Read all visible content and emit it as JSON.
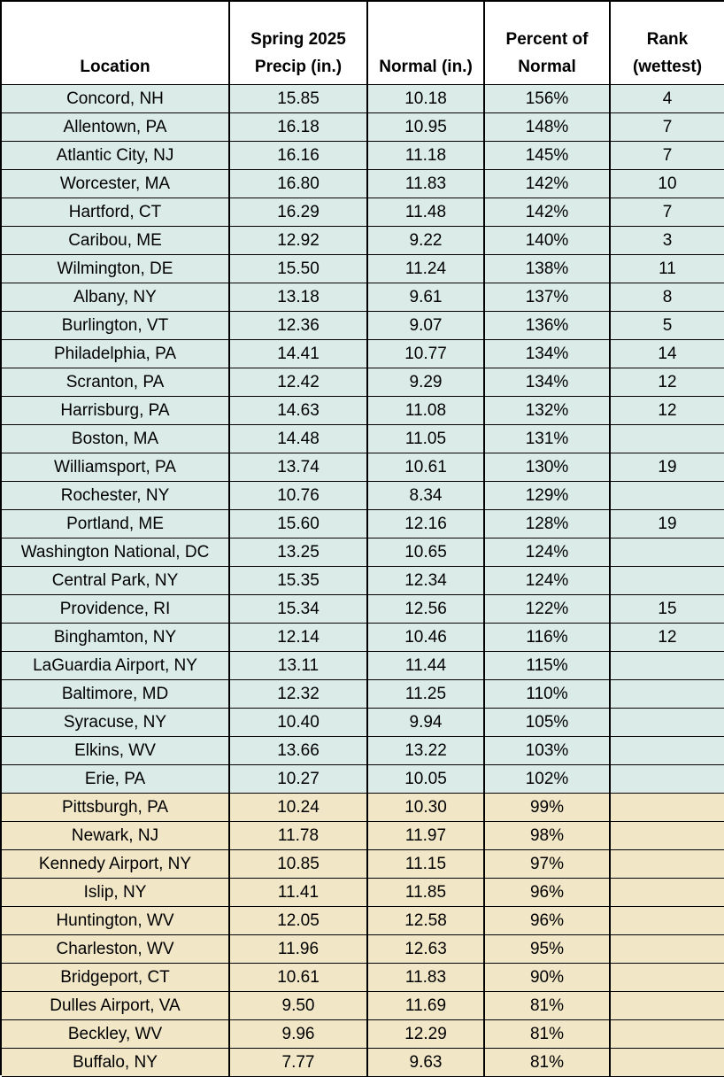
{
  "table": {
    "header": [
      [
        "Location"
      ],
      [
        "Spring 2025",
        "Precip (in.)"
      ],
      [
        "Normal (in.)"
      ],
      [
        "Percent of",
        "Normal"
      ],
      [
        "Rank",
        "(wettest)"
      ]
    ],
    "sections": [
      {
        "color": "#dbece8",
        "rows": [
          [
            "Concord, NH",
            "15.85",
            "10.18",
            "156%",
            "4"
          ],
          [
            "Allentown, PA",
            "16.18",
            "10.95",
            "148%",
            "7"
          ],
          [
            "Atlantic City, NJ",
            "16.16",
            "11.18",
            "145%",
            "7"
          ],
          [
            "Worcester, MA",
            "16.80",
            "11.83",
            "142%",
            "10"
          ],
          [
            "Hartford, CT",
            "16.29",
            "11.48",
            "142%",
            "7"
          ],
          [
            "Caribou, ME",
            "12.92",
            "9.22",
            "140%",
            "3"
          ],
          [
            "Wilmington, DE",
            "15.50",
            "11.24",
            "138%",
            "11"
          ],
          [
            "Albany, NY",
            "13.18",
            "9.61",
            "137%",
            "8"
          ],
          [
            "Burlington, VT",
            "12.36",
            "9.07",
            "136%",
            "5"
          ],
          [
            "Philadelphia, PA",
            "14.41",
            "10.77",
            "134%",
            "14"
          ],
          [
            "Scranton, PA",
            "12.42",
            "9.29",
            "134%",
            "12"
          ],
          [
            "Harrisburg, PA",
            "14.63",
            "11.08",
            "132%",
            "12"
          ],
          [
            "Boston, MA",
            "14.48",
            "11.05",
            "131%"
          ],
          [
            "Williamsport, PA",
            "13.74",
            "10.61",
            "130%",
            "19"
          ],
          [
            "Rochester, NY",
            "10.76",
            "8.34",
            "129%"
          ],
          [
            "Portland, ME",
            "15.60",
            "12.16",
            "128%",
            "19"
          ],
          [
            "Washington National, DC",
            "13.25",
            "10.65",
            "124%"
          ],
          [
            "Central Park, NY",
            "15.35",
            "12.34",
            "124%"
          ],
          [
            "Providence, RI",
            "15.34",
            "12.56",
            "122%",
            "15"
          ],
          [
            "Binghamton, NY",
            "12.14",
            "10.46",
            "116%",
            "12"
          ],
          [
            "LaGuardia Airport, NY",
            "13.11",
            "11.44",
            "115%"
          ],
          [
            "Baltimore, MD",
            "12.32",
            "11.25",
            "110%"
          ],
          [
            "Syracuse, NY",
            "10.40",
            "9.94",
            "105%"
          ],
          [
            "Elkins, WV",
            "13.66",
            "13.22",
            "103%"
          ],
          [
            "Erie, PA",
            "10.27",
            "10.05",
            "102%"
          ]
        ]
      },
      {
        "color": "#f1e6c6",
        "rows": [
          [
            "Pittsburgh, PA",
            "10.24",
            "10.30",
            "99%"
          ],
          [
            "Newark, NJ",
            "11.78",
            "11.97",
            "98%"
          ],
          [
            "Kennedy Airport, NY",
            "10.85",
            "11.15",
            "97%"
          ],
          [
            "Islip, NY",
            "11.41",
            "11.85",
            "96%"
          ],
          [
            "Huntington, WV",
            "12.05",
            "12.58",
            "96%"
          ],
          [
            "Charleston, WV",
            "11.96",
            "12.63",
            "95%"
          ],
          [
            "Bridgeport, CT",
            "10.61",
            "11.83",
            "90%"
          ],
          [
            "Dulles Airport, VA",
            "9.50",
            "11.69",
            "81%"
          ],
          [
            "Beckley, WV",
            "9.96",
            "12.29",
            "81%"
          ],
          [
            "Buffalo, NY",
            "7.77",
            "9.63",
            "81%"
          ]
        ]
      }
    ]
  }
}
